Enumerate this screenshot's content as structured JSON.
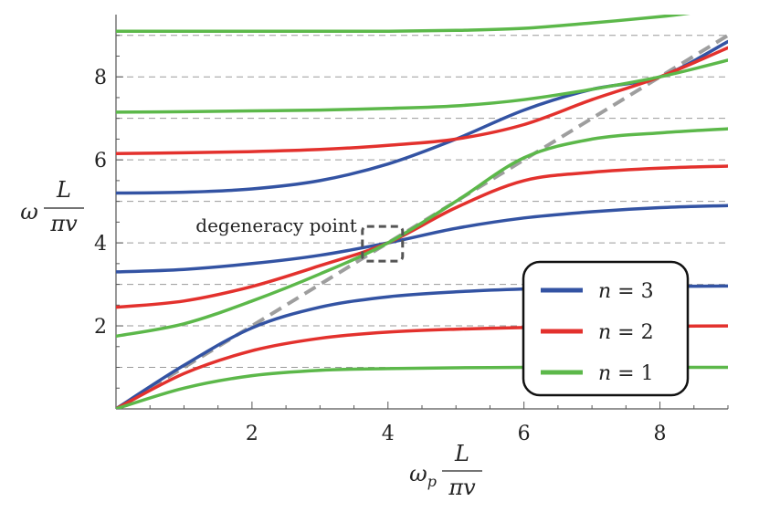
{
  "chart_data": {
    "type": "line",
    "title": "",
    "xlabel": {
      "prefix": "ω",
      "sub": "p",
      "num": "L",
      "den": "πv"
    },
    "ylabel": {
      "prefix": "ω",
      "num": "L",
      "den": "πv"
    },
    "xlim": [
      0,
      9
    ],
    "ylim": [
      0,
      9.5
    ],
    "xticks": [
      2,
      4,
      6,
      8
    ],
    "yticks": [
      2,
      4,
      6,
      8
    ],
    "xtick_labels": [
      "2",
      "4",
      "6",
      "8"
    ],
    "ytick_labels": [
      "2",
      "4",
      "6",
      "8"
    ],
    "grid": "horizontal dashed lines at integer y values 1–9",
    "gridlines_y": [
      1,
      2,
      3,
      4,
      5,
      6,
      7,
      8,
      9
    ],
    "reference_line": {
      "style": "dashed",
      "color": "#9e9e9e",
      "x": [
        0,
        9
      ],
      "y": [
        0,
        9
      ]
    },
    "annotation": {
      "text": "degeneracy point",
      "at": [
        4,
        4
      ]
    },
    "legend": {
      "placement": "bottom-right"
    },
    "series": [
      {
        "name": "n = 3",
        "legend_label": {
          "var": "n",
          "eq": " = 3"
        },
        "color": "#3353a3",
        "branches": [
          {
            "x": [
              0,
              1,
              2,
              3,
              4,
              5,
              6,
              7,
              8,
              9
            ],
            "y": [
              0,
              1.05,
              1.95,
              2.45,
              2.7,
              2.82,
              2.89,
              2.93,
              2.95,
              2.96
            ]
          },
          {
            "x": [
              0,
              1,
              2,
              3,
              4,
              5,
              6,
              7,
              8,
              9
            ],
            "y": [
              3.3,
              3.36,
              3.5,
              3.7,
              4.0,
              4.35,
              4.6,
              4.75,
              4.85,
              4.9
            ]
          },
          {
            "x": [
              0,
              1,
              2,
              3,
              4,
              5,
              6,
              7,
              8,
              9
            ],
            "y": [
              5.2,
              5.22,
              5.3,
              5.5,
              5.9,
              6.5,
              7.2,
              7.7,
              8.0,
              8.85
            ]
          }
        ]
      },
      {
        "name": "n = 2",
        "legend_label": {
          "var": "n",
          "eq": " = 2"
        },
        "color": "#e3312d",
        "branches": [
          {
            "x": [
              0,
              1,
              2,
              3,
              4,
              5,
              6,
              7,
              8,
              9
            ],
            "y": [
              0,
              0.85,
              1.4,
              1.7,
              1.85,
              1.92,
              1.96,
              1.98,
              1.99,
              2.0
            ]
          },
          {
            "x": [
              0,
              1,
              2,
              3,
              4,
              5,
              6,
              7,
              8,
              9
            ],
            "y": [
              2.45,
              2.6,
              2.95,
              3.45,
              4.0,
              4.85,
              5.5,
              5.7,
              5.8,
              5.85
            ]
          },
          {
            "x": [
              0,
              1,
              2,
              3,
              4,
              5,
              6,
              7,
              8,
              9
            ],
            "y": [
              6.15,
              6.17,
              6.2,
              6.25,
              6.35,
              6.5,
              6.85,
              7.45,
              8.0,
              8.7
            ]
          }
        ]
      },
      {
        "name": "n = 1",
        "legend_label": {
          "var": "n",
          "eq": " = 1"
        },
        "color": "#5cb84a",
        "branches": [
          {
            "x": [
              0,
              1,
              2,
              3,
              4,
              5,
              6,
              7,
              8,
              9
            ],
            "y": [
              0,
              0.5,
              0.8,
              0.93,
              0.97,
              0.99,
              1.0,
              1.0,
              1.0,
              1.0
            ]
          },
          {
            "x": [
              0,
              1,
              2,
              3,
              4,
              5,
              6,
              7,
              8,
              9
            ],
            "y": [
              1.75,
              2.05,
              2.6,
              3.25,
              4.0,
              5.0,
              6.05,
              6.5,
              6.65,
              6.75
            ]
          },
          {
            "x": [
              0,
              1,
              2,
              3,
              4,
              5,
              6,
              7,
              8,
              9
            ],
            "y": [
              7.15,
              7.16,
              7.18,
              7.2,
              7.24,
              7.3,
              7.45,
              7.7,
              8.0,
              8.4
            ]
          },
          {
            "x": [
              0,
              1,
              2,
              3,
              4,
              5,
              6,
              7,
              8,
              8.5
            ],
            "y": [
              9.1,
              9.1,
              9.1,
              9.1,
              9.1,
              9.12,
              9.17,
              9.3,
              9.45,
              9.55
            ]
          }
        ]
      }
    ]
  }
}
